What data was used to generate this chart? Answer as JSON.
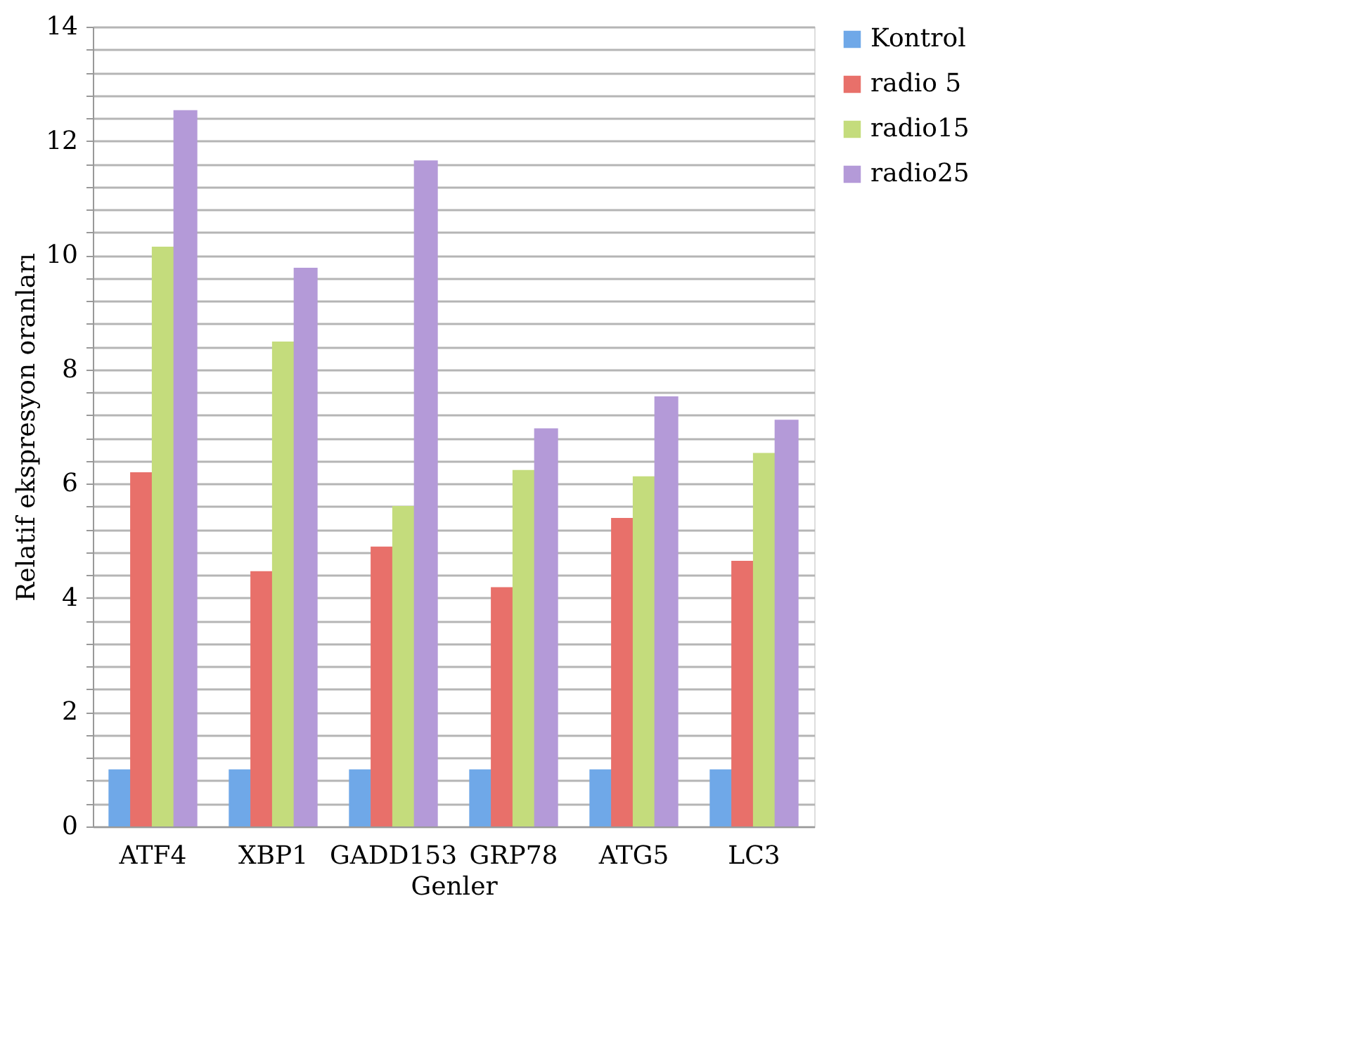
{
  "chart_data": {
    "type": "bar",
    "xlabel": "Genler",
    "ylabel": "Relatif ekspresyon oranları",
    "categories": [
      "ATF4",
      "XBP1",
      "GADD153",
      "GRP78",
      "ATG5",
      "LC3"
    ],
    "series": [
      {
        "name": "Kontrol",
        "color": "#6fa8e8",
        "values": [
          1.0,
          1.0,
          1.0,
          1.0,
          1.0,
          1.0
        ]
      },
      {
        "name": "radio 5",
        "color": "#e8706a",
        "values": [
          6.2,
          4.47,
          4.9,
          4.19,
          5.4,
          4.65
        ]
      },
      {
        "name": "radio15",
        "color": "#c4dc7c",
        "values": [
          10.15,
          8.49,
          5.61,
          6.24,
          6.13,
          6.54
        ]
      },
      {
        "name": "radio25",
        "color": "#b49ad8",
        "values": [
          12.54,
          9.78,
          11.66,
          6.97,
          7.53,
          7.12
        ]
      }
    ],
    "ylim": [
      0,
      14
    ],
    "yticks": [
      0,
      {
        "value": 0.4,
        "label": null
      },
      {
        "value": 0.8,
        "label": null
      },
      {
        "value": 1.2,
        "label": null
      },
      {
        "value": 1.6,
        "label": null
      },
      2,
      {
        "value": 2.4,
        "label": null
      },
      {
        "value": 2.8,
        "label": null
      },
      {
        "value": 3.2,
        "label": null
      },
      {
        "value": 3.6,
        "label": null
      },
      4,
      {
        "value": 4.4,
        "label": null
      },
      {
        "value": 4.8,
        "label": null
      },
      {
        "value": 5.2,
        "label": null
      },
      {
        "value": 5.6,
        "label": null
      },
      6,
      {
        "value": 6.4,
        "label": null
      },
      {
        "value": 6.8,
        "label": null
      },
      {
        "value": 7.2,
        "label": null
      },
      {
        "value": 7.6,
        "label": null
      },
      8,
      {
        "value": 8.4,
        "label": null
      },
      {
        "value": 8.8,
        "label": null
      },
      {
        "value": 9.2,
        "label": null
      },
      {
        "value": 9.6,
        "label": null
      },
      10,
      {
        "value": 10.4,
        "label": null
      },
      {
        "value": 10.8,
        "label": null
      },
      {
        "value": 11.2,
        "label": null
      },
      {
        "value": 11.6,
        "label": null
      },
      12,
      {
        "value": 12.4,
        "label": null
      },
      {
        "value": 12.8,
        "label": null
      },
      {
        "value": 13.2,
        "label": null
      },
      {
        "value": 13.6,
        "label": null
      },
      14
    ],
    "grid": "y",
    "legend": "right"
  }
}
